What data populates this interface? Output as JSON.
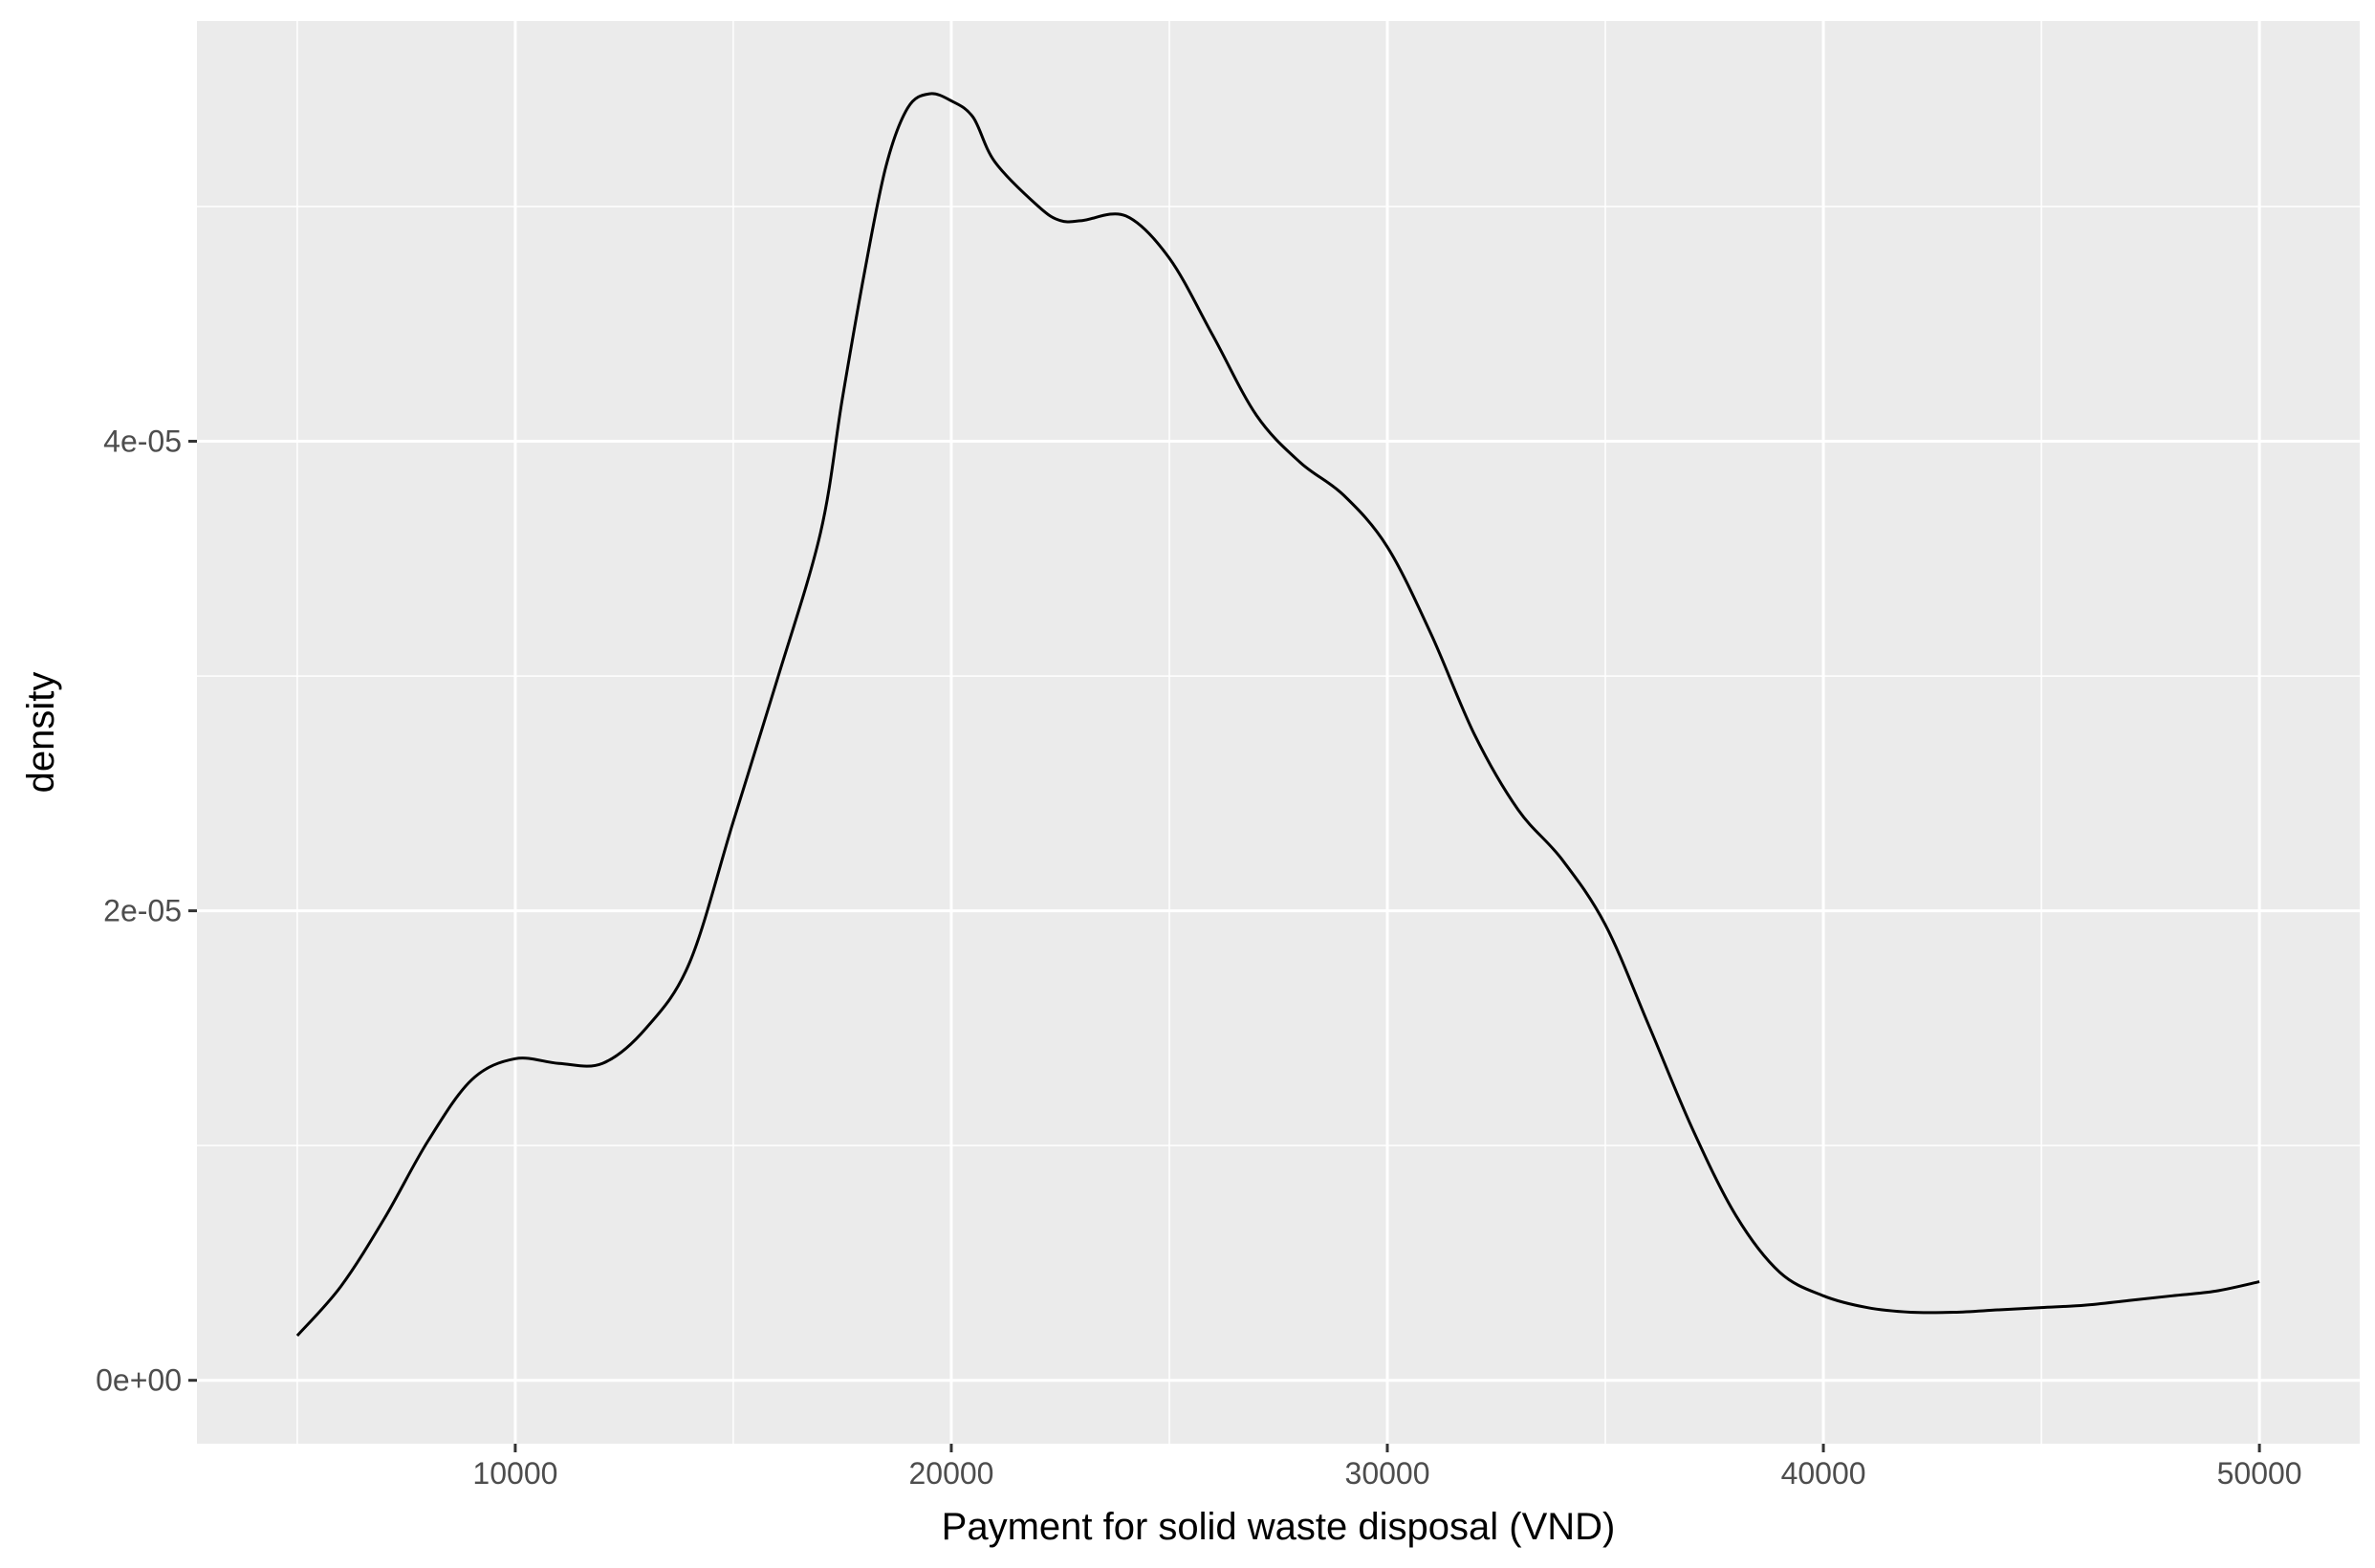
{
  "chart_data": {
    "type": "line",
    "title": "",
    "xlabel": "Payment for solid waste disposal (VND)",
    "ylabel": "density",
    "xlim": [
      2700,
      52300
    ],
    "ylim": [
      -2.7e-06,
      5.79e-05
    ],
    "x_ticks": [
      10000,
      20000,
      30000,
      40000,
      50000
    ],
    "x_tick_labels": [
      "10000",
      "20000",
      "30000",
      "40000",
      "50000"
    ],
    "x_minor_ticks": [
      5000,
      15000,
      25000,
      35000,
      45000
    ],
    "y_ticks": [
      0,
      2e-05,
      4e-05
    ],
    "y_tick_labels": [
      "0e+00",
      "2e-05",
      "4e-05"
    ],
    "y_minor_ticks": [
      1e-05,
      3e-05,
      5e-05
    ],
    "grid": true,
    "legend": "none",
    "colors": {
      "panel": "#ebebeb",
      "grid": "#ffffff",
      "line": "#000000",
      "text": "#4d4d4d",
      "title_text": "#000000"
    },
    "series": [
      {
        "x": [
          5000,
          6000,
          7000,
          8000,
          9000,
          10000,
          11000,
          12000,
          13000,
          14000,
          15000,
          16000,
          17000,
          17500,
          18000,
          18500,
          19000,
          19500,
          20000,
          20500,
          21000,
          22000,
          22500,
          23000,
          24000,
          25000,
          26000,
          27000,
          28000,
          29000,
          30000,
          31000,
          32000,
          33000,
          34000,
          35000,
          36000,
          37000,
          38000,
          39000,
          40000,
          41000,
          42000,
          43000,
          44000,
          45000,
          46000,
          47000,
          48000,
          49000,
          50000
        ],
        "y": [
          1.9e-06,
          4e-06,
          6.9e-06,
          1.02e-05,
          1.28e-05,
          1.37e-05,
          1.35e-05,
          1.35e-05,
          1.5e-05,
          1.78e-05,
          2.38e-05,
          2.98e-05,
          3.61e-05,
          4.18e-05,
          4.71e-05,
          5.17e-05,
          5.42e-05,
          5.48e-05,
          5.45e-05,
          5.38e-05,
          5.19e-05,
          5e-05,
          4.94e-05,
          4.94e-05,
          4.96e-05,
          4.78e-05,
          4.45e-05,
          4.11e-05,
          3.91e-05,
          3.77e-05,
          3.55e-05,
          3.18e-05,
          2.75e-05,
          2.43e-05,
          2.22e-05,
          1.94e-05,
          1.51e-05,
          1.07e-05,
          7e-06,
          4.6e-06,
          3.6e-06,
          3.1e-06,
          2.9e-06,
          2.9e-06,
          3e-06,
          3.1e-06,
          3.2e-06,
          3.4e-06,
          3.6e-06,
          3.8e-06,
          4.2e-06
        ]
      }
    ]
  }
}
